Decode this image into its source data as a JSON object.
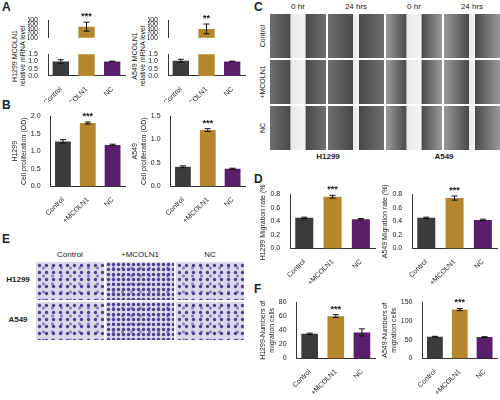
{
  "panel_labels": [
    "A",
    "B",
    "C",
    "D",
    "E",
    "F"
  ],
  "chart_data": [
    {
      "type": "bar",
      "y_label": [
        "H1299 MCOLN1",
        "relative mRNA level"
      ],
      "categories": [
        "Control",
        "+MCOLN1",
        "NC"
      ],
      "values": [
        1.0,
        350,
        1.0
      ],
      "errors": [
        0.12,
        100,
        0.02
      ],
      "colors": [
        "#3b3b3b",
        "#b5862c",
        "#5a1f6b"
      ],
      "annotations": [
        {
          "category": "+MCOLN1",
          "text": "***"
        }
      ],
      "ylim": [
        0,
        500
      ],
      "yticks": [
        {
          "value": 0,
          "label": "0.0"
        },
        {
          "value": 0.5,
          "label": "0.5"
        },
        {
          "value": 1,
          "label": "1.0"
        },
        {
          "value": 1.5,
          "label": "1.5"
        },
        100,
        200,
        300,
        400,
        500
      ],
      "grid": false
    },
    {
      "type": "bar",
      "y_label": [
        "A549 MCOLN1",
        "relative mRNA level"
      ],
      "categories": [
        "Control",
        "+MCOLN1",
        "NC"
      ],
      "values": [
        1.05,
        300,
        1.0
      ],
      "errors": [
        0.1,
        110,
        0.02
      ],
      "colors": [
        "#3b3b3b",
        "#b5862c",
        "#5a1f6b"
      ],
      "annotations": [
        {
          "category": "+MCOLN1",
          "text": "**"
        }
      ],
      "ylim": [
        0,
        500
      ],
      "yticks": [
        {
          "value": 0,
          "label": "0.0"
        },
        {
          "value": 0.5,
          "label": "0.5"
        },
        {
          "value": 1,
          "label": "1.0"
        },
        {
          "value": 1.5,
          "label": "1.5"
        },
        100,
        200,
        300,
        400,
        500
      ],
      "grid": false
    },
    {
      "type": "bar",
      "y_label": [
        "H1299",
        "Cell proliferation (OD)"
      ],
      "categories": [
        "Control",
        "+MCOLN1",
        "NC"
      ],
      "values": [
        1.28,
        1.8,
        1.18
      ],
      "errors": [
        0.05,
        0.03,
        0.02
      ],
      "colors": [
        "#3b3b3b",
        "#b5862c",
        "#5a1f6b"
      ],
      "annotations": [
        {
          "category": "+MCOLN1",
          "text": "***"
        }
      ],
      "ylim": [
        0,
        2
      ],
      "yticks": [
        {
          "value": 0,
          "label": "0.0"
        },
        {
          "value": 0.5,
          "label": "0.5"
        },
        {
          "value": 1,
          "label": "1.0"
        },
        {
          "value": 1.5,
          "label": "1.5"
        },
        {
          "value": 2,
          "label": "2.0"
        }
      ],
      "grid": false
    },
    {
      "type": "bar",
      "y_label": [
        "A549",
        "Cell proliferation (OD)"
      ],
      "categories": [
        "Control",
        "+MCOLN1",
        "NC"
      ],
      "values": [
        0.42,
        1.2,
        0.38
      ],
      "errors": [
        0.02,
        0.03,
        0.01
      ],
      "colors": [
        "#3b3b3b",
        "#b5862c",
        "#5a1f6b"
      ],
      "annotations": [
        {
          "category": "+MCOLN1",
          "text": "***"
        }
      ],
      "ylim": [
        0,
        1.5
      ],
      "yticks": [
        {
          "value": 0,
          "label": "0.0"
        },
        {
          "value": 0.5,
          "label": "0.5"
        },
        {
          "value": 1,
          "label": "1.0"
        },
        {
          "value": 1.5,
          "label": "1.5"
        }
      ],
      "grid": false
    },
    {
      "type": "bar",
      "y_label": "H1299 Migration rate (%)",
      "categories": [
        "Control",
        "+MCOLN1",
        "NC"
      ],
      "values": [
        0.45,
        0.76,
        0.43
      ],
      "errors": [
        0.01,
        0.02,
        0.01
      ],
      "colors": [
        "#3b3b3b",
        "#b5862c",
        "#5a1f6b"
      ],
      "annotations": [
        {
          "category": "+MCOLN1",
          "text": "***"
        }
      ],
      "ylim": [
        0,
        0.8
      ],
      "yticks": [
        {
          "value": 0,
          "label": "0.0"
        },
        {
          "value": 0.2,
          "label": "0.2"
        },
        {
          "value": 0.4,
          "label": "0.4"
        },
        {
          "value": 0.6,
          "label": "0.6"
        },
        {
          "value": 0.8,
          "label": "0.8"
        }
      ],
      "grid": false
    },
    {
      "type": "bar",
      "y_label": "A549 Migration rate (%)",
      "categories": [
        "Control",
        "+MCOLN1",
        "NC"
      ],
      "values": [
        0.45,
        0.74,
        0.42
      ],
      "errors": [
        0.01,
        0.03,
        0.01
      ],
      "colors": [
        "#3b3b3b",
        "#b5862c",
        "#5a1f6b"
      ],
      "annotations": [
        {
          "category": "+MCOLN1",
          "text": "***"
        }
      ],
      "ylim": [
        0,
        0.8
      ],
      "yticks": [
        {
          "value": 0,
          "label": "0.0"
        },
        {
          "value": 0.2,
          "label": "0.2"
        },
        {
          "value": 0.4,
          "label": "0.4"
        },
        {
          "value": 0.6,
          "label": "0.6"
        },
        {
          "value": 0.8,
          "label": "0.8"
        }
      ],
      "grid": false
    },
    {
      "type": "bar",
      "y_label": [
        "H1299-Numbers of",
        "migration cells"
      ],
      "categories": [
        "Control",
        "+MCOLN1",
        "NC"
      ],
      "values": [
        35,
        60,
        37
      ],
      "errors": [
        1,
        2,
        5
      ],
      "colors": [
        "#3b3b3b",
        "#b5862c",
        "#5a1f6b"
      ],
      "annotations": [
        {
          "category": "+MCOLN1",
          "text": "***"
        }
      ],
      "ylim": [
        0,
        80
      ],
      "yticks": [
        0,
        20,
        40,
        60,
        80
      ],
      "grid": false
    },
    {
      "type": "bar",
      "y_label": [
        "A549-Numbers of",
        "migration cells"
      ],
      "categories": [
        "Control",
        "+MCOLN1",
        "NC"
      ],
      "values": [
        58,
        130,
        57
      ],
      "errors": [
        1,
        3,
        1
      ],
      "colors": [
        "#3b3b3b",
        "#b5862c",
        "#5a1f6b"
      ],
      "annotations": [
        {
          "category": "+MCOLN1",
          "text": "***"
        }
      ],
      "ylim": [
        0,
        150
      ],
      "yticks": [
        0,
        50,
        100,
        150
      ],
      "grid": false
    }
  ],
  "image_panels": [
    {
      "columns": [
        "0 hr",
        "24 hrs"
      ],
      "rows": [
        "Control",
        "+MCOLN1",
        "NC"
      ],
      "groups": [
        "H1299",
        "A549"
      ]
    },
    {
      "columns": [
        "Control",
        "+MCOLN1",
        "NC"
      ],
      "rows": [
        "H1299",
        "A549"
      ]
    }
  ]
}
